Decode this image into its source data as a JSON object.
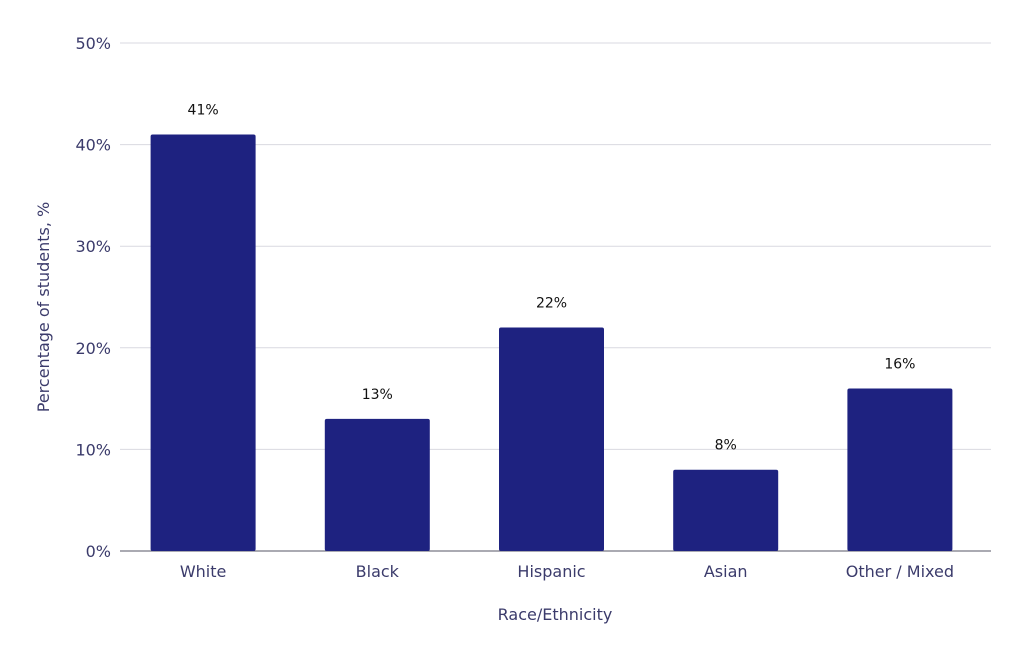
{
  "chart_data": {
    "type": "bar",
    "categories": [
      "White",
      "Black",
      "Hispanic",
      "Asian",
      "Other / Mixed"
    ],
    "values": [
      41,
      13,
      22,
      8,
      16
    ],
    "data_labels": [
      "41%",
      "13%",
      "22%",
      "8%",
      "16%"
    ],
    "xlabel": "Race/Ethnicity",
    "ylabel": "Percentage of students, %",
    "ylim": [
      0,
      50
    ],
    "yticks": [
      0,
      10,
      20,
      30,
      40,
      50
    ],
    "ytick_labels": [
      "0%",
      "10%",
      "20%",
      "30%",
      "40%",
      "50%"
    ],
    "grid": true,
    "bar_color": "#1e2280"
  }
}
